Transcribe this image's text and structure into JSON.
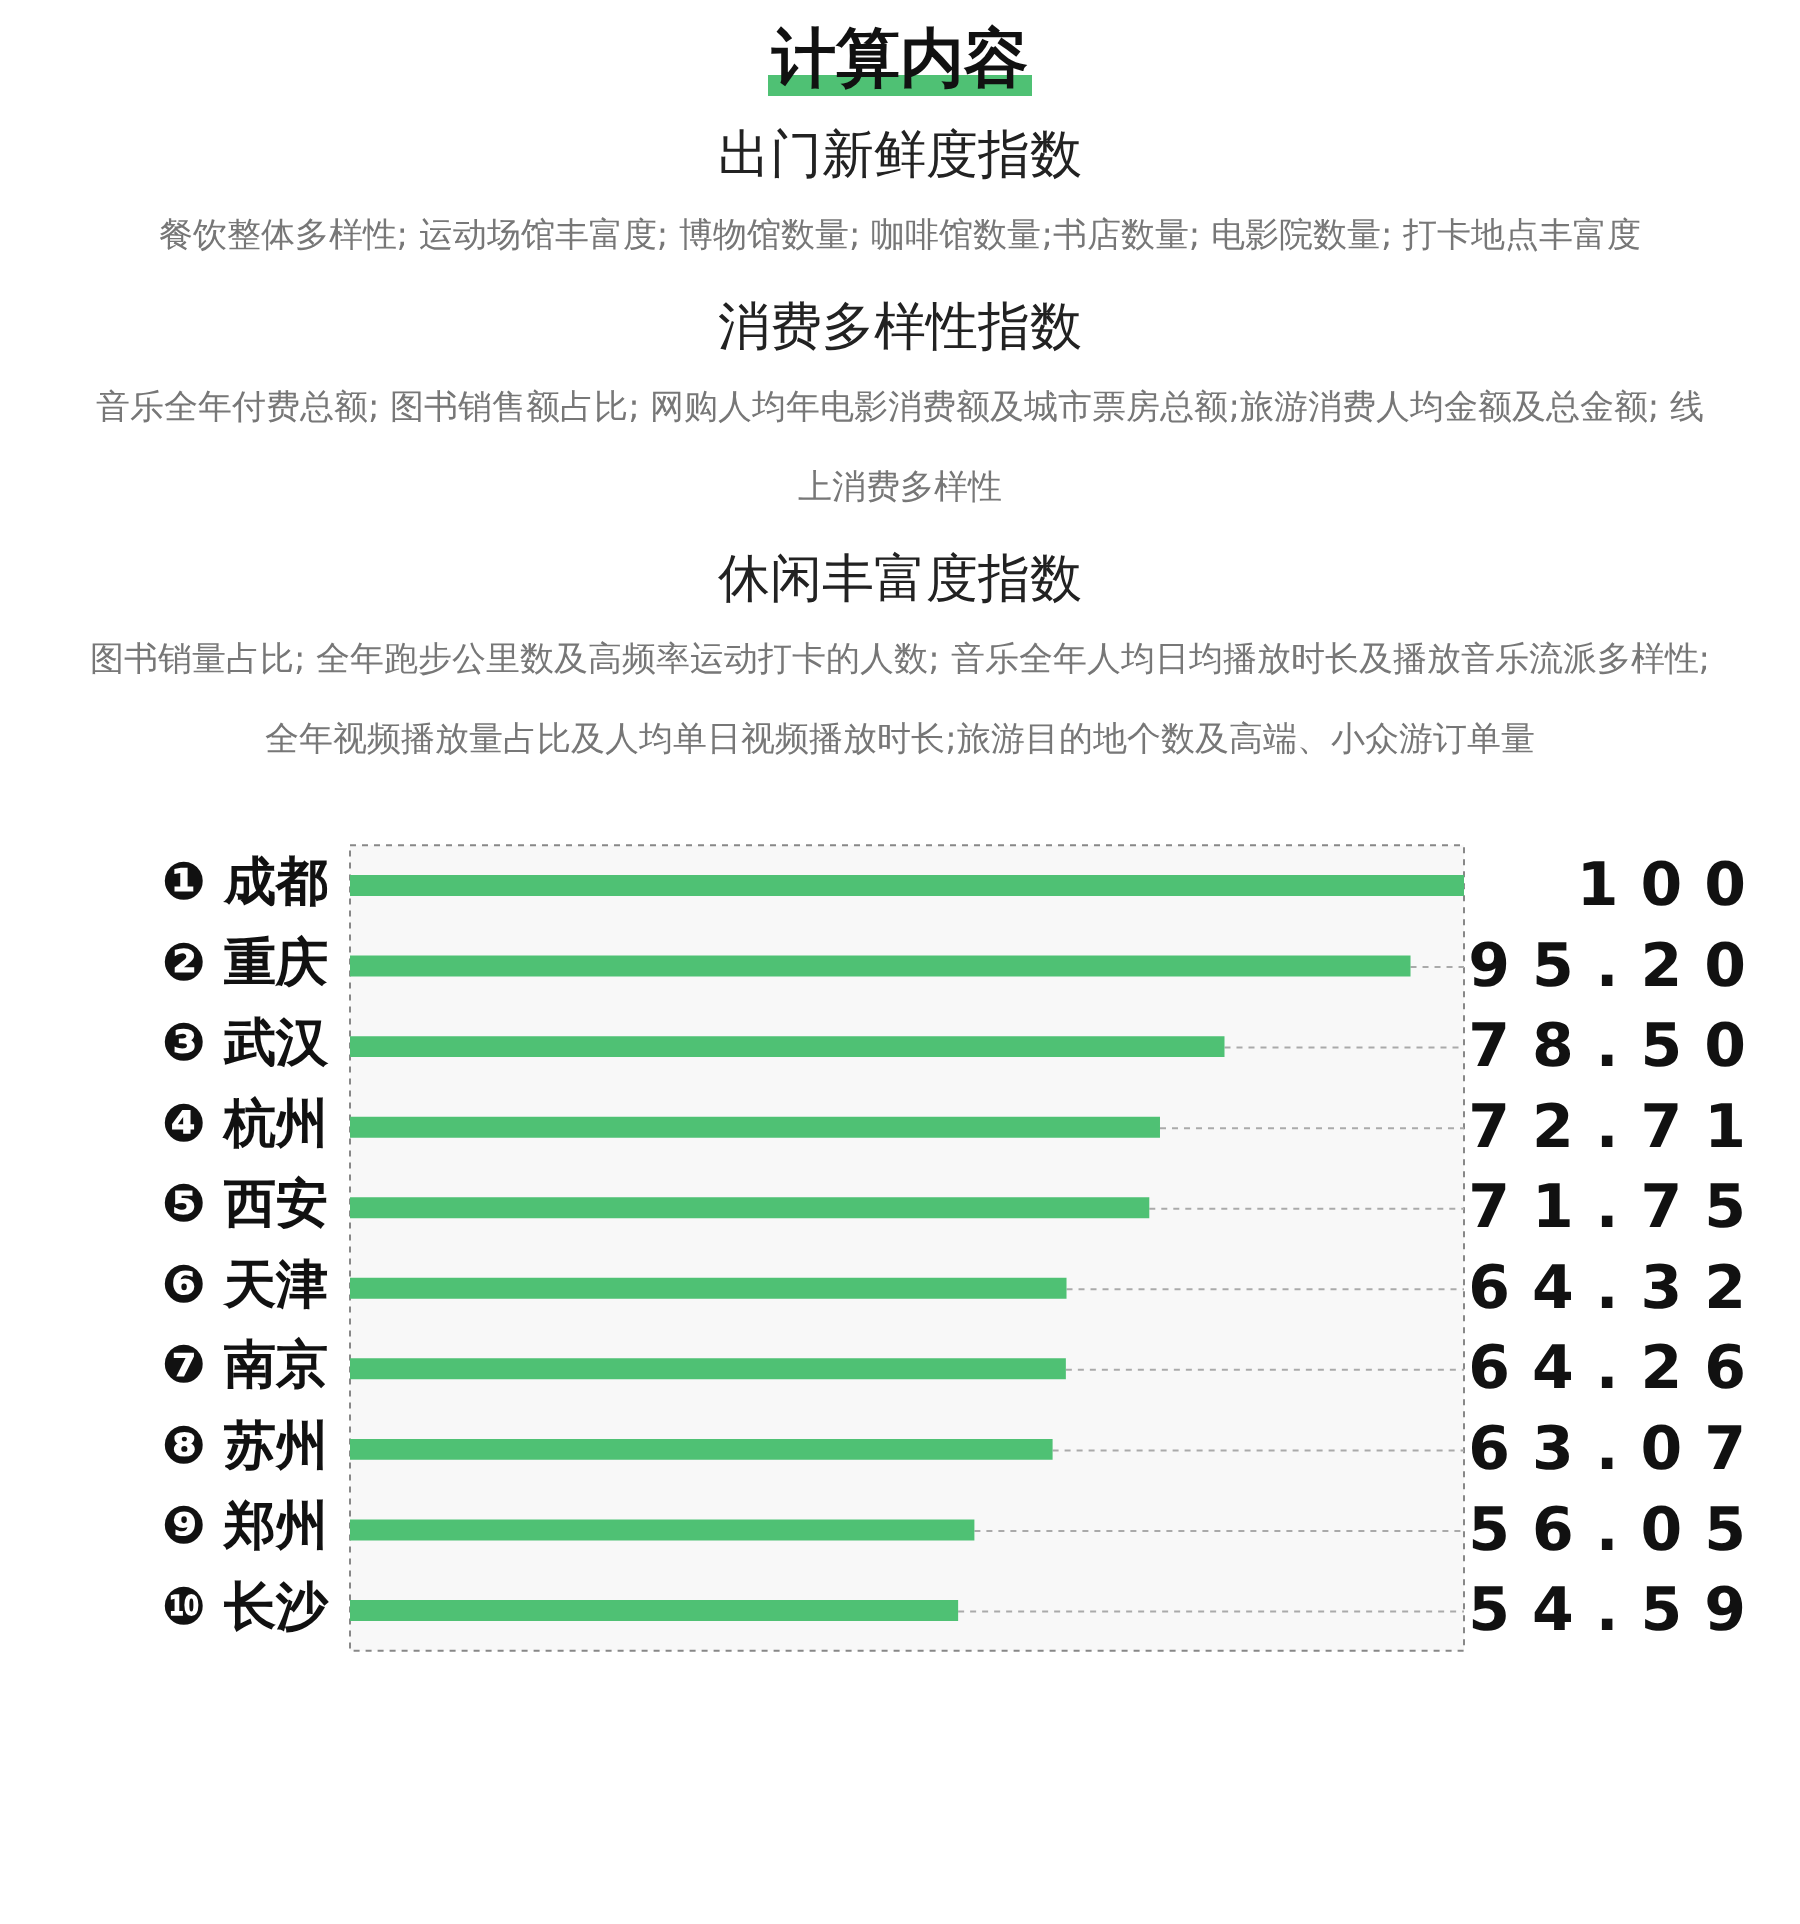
{
  "chart_data": {
    "type": "bar",
    "orientation": "horizontal",
    "title": "计算内容",
    "annotations": [
      "出门新鲜度指数",
      "餐饮整体多样性; 运动场馆丰富度; 博物馆数量; 咖啡馆数量;书店数量; 电影院数量; 打卡地点丰富度",
      "消费多样性指数",
      "音乐全年付费总额; 图书销售额占比; 网购人均年电影消费额及城市票房总额;旅游消费人均金额及总金额; 线上消费多样性",
      "休闲丰富度指数",
      "图书销量占比; 全年跑步公里数及高频率运动打卡的人数; 音乐全年人均日均播放时长及播放音乐流派多样性; 全年视频播放量占比及人均单日视频播放时长;旅游目的地个数及高端、小众游订单量"
    ],
    "categories": [
      "❶ 成都",
      "❷ 重庆",
      "❸ 武汉",
      "❹ 杭州",
      "❺ 西安",
      "❻ 天津",
      "❼ 南京",
      "❽ 苏州",
      "❾ 郑州",
      "❿ 长沙"
    ],
    "values": [
      100,
      95.2,
      78.5,
      72.71,
      71.75,
      64.32,
      64.26,
      63.07,
      56.05,
      54.59
    ],
    "value_labels": [
      "100",
      "95.20",
      "78.50",
      "72.71",
      "71.75",
      "64.32",
      "64.26",
      "63.07",
      "56.05",
      "54.59"
    ],
    "color": "#4fc174",
    "xlim": [
      0,
      100
    ],
    "tick_labels": "y",
    "grid": false,
    "legend": false
  }
}
